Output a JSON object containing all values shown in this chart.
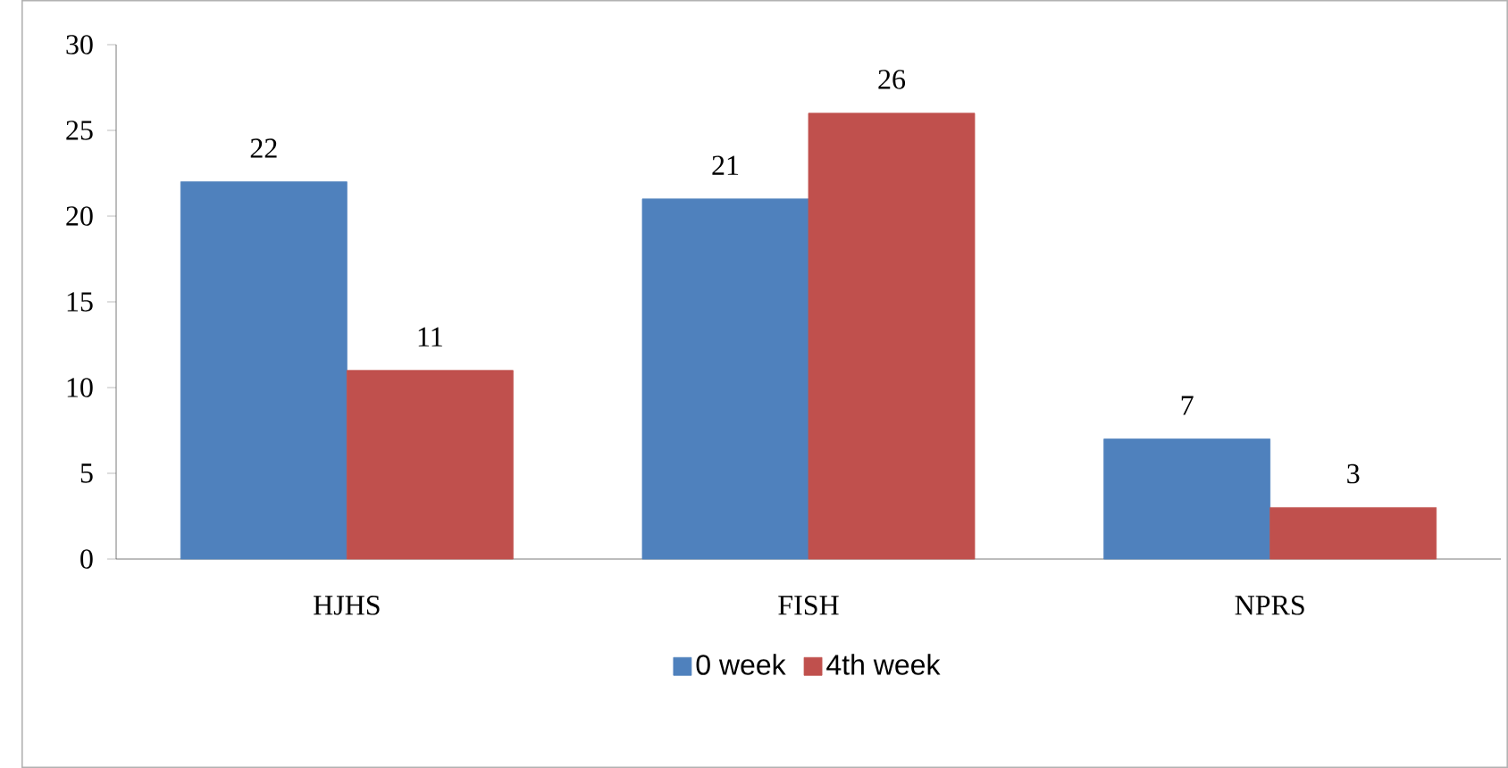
{
  "chart_data": {
    "type": "bar",
    "categories": [
      "HJHS",
      "FISH",
      "NPRS"
    ],
    "series": [
      {
        "name": "0 week",
        "color": "#4f81bd",
        "values": [
          22,
          21,
          7
        ]
      },
      {
        "name": "4th week",
        "color": "#c0504d",
        "values": [
          11,
          26,
          3
        ]
      }
    ],
    "ylim": [
      0,
      30
    ],
    "yticks": [
      0,
      5,
      10,
      15,
      20,
      25,
      30
    ],
    "data_labels": true,
    "legend": "bottom"
  }
}
